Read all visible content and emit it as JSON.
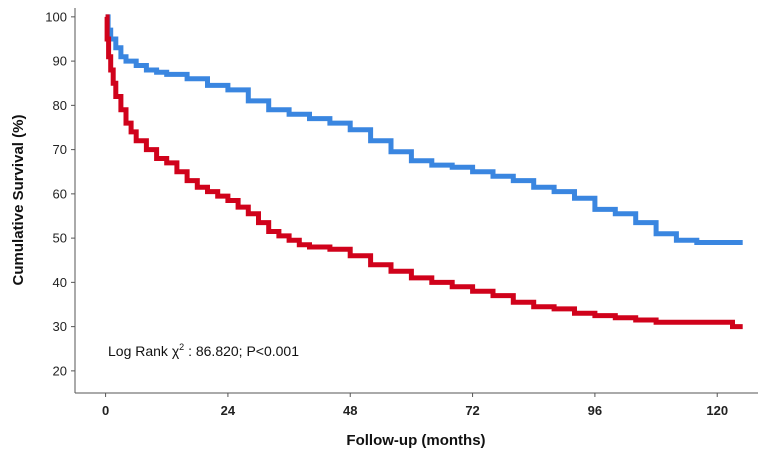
{
  "chart_data": {
    "type": "line",
    "xlabel": "Follow-up (months)",
    "ylabel": "Cumulative Survival (%)",
    "xlim": [
      -6,
      128
    ],
    "ylim": [
      15,
      102
    ],
    "xticks": [
      "0",
      "24",
      "48",
      "72",
      "96",
      "120"
    ],
    "yticks": [
      "20",
      "30",
      "40",
      "50",
      "60",
      "70",
      "80",
      "90",
      "100"
    ],
    "annotation": {
      "prefix": "Log Rank χ",
      "superscript": "2",
      "suffix": " : 86.820; P<0.001"
    },
    "step": true,
    "series": [
      {
        "color": "#3a86e0",
        "x": [
          0,
          0.5,
          1,
          2,
          3,
          4,
          6,
          8,
          10,
          12,
          16,
          20,
          24,
          28,
          32,
          36,
          40,
          44,
          48,
          52,
          56,
          60,
          64,
          68,
          72,
          76,
          80,
          84,
          88,
          92,
          96,
          100,
          104,
          108,
          112,
          116,
          120,
          125
        ],
        "y": [
          100,
          97,
          95,
          93,
          91,
          90,
          89,
          88,
          87.5,
          87,
          86,
          84.5,
          83.5,
          81,
          79,
          78,
          77,
          76,
          74.5,
          72,
          69.5,
          67.5,
          66.5,
          66,
          65,
          64,
          63,
          61.5,
          60.5,
          59,
          56.5,
          55.5,
          53.5,
          51,
          49.5,
          49,
          49,
          49
        ]
      },
      {
        "color": "#d0021b",
        "x": [
          0,
          0.3,
          0.6,
          1,
          1.5,
          2,
          3,
          4,
          5,
          6,
          8,
          10,
          12,
          14,
          16,
          18,
          20,
          22,
          24,
          26,
          28,
          30,
          32,
          34,
          36,
          38,
          40,
          44,
          48,
          52,
          56,
          60,
          64,
          68,
          72,
          76,
          80,
          84,
          88,
          92,
          96,
          100,
          104,
          108,
          112,
          116,
          120,
          123,
          125
        ],
        "y": [
          100,
          95,
          91,
          88,
          85,
          82,
          79,
          76,
          74,
          72,
          70,
          68,
          67,
          65,
          63,
          61.5,
          60.5,
          59.5,
          58.5,
          57,
          55.5,
          53.5,
          51.5,
          50.5,
          49.5,
          48.5,
          48,
          47.5,
          46,
          44,
          42.5,
          41,
          40,
          39,
          38,
          37,
          35.5,
          34.5,
          34,
          33,
          32.5,
          32,
          31.5,
          31,
          31,
          31,
          31,
          30,
          30
        ]
      }
    ]
  }
}
